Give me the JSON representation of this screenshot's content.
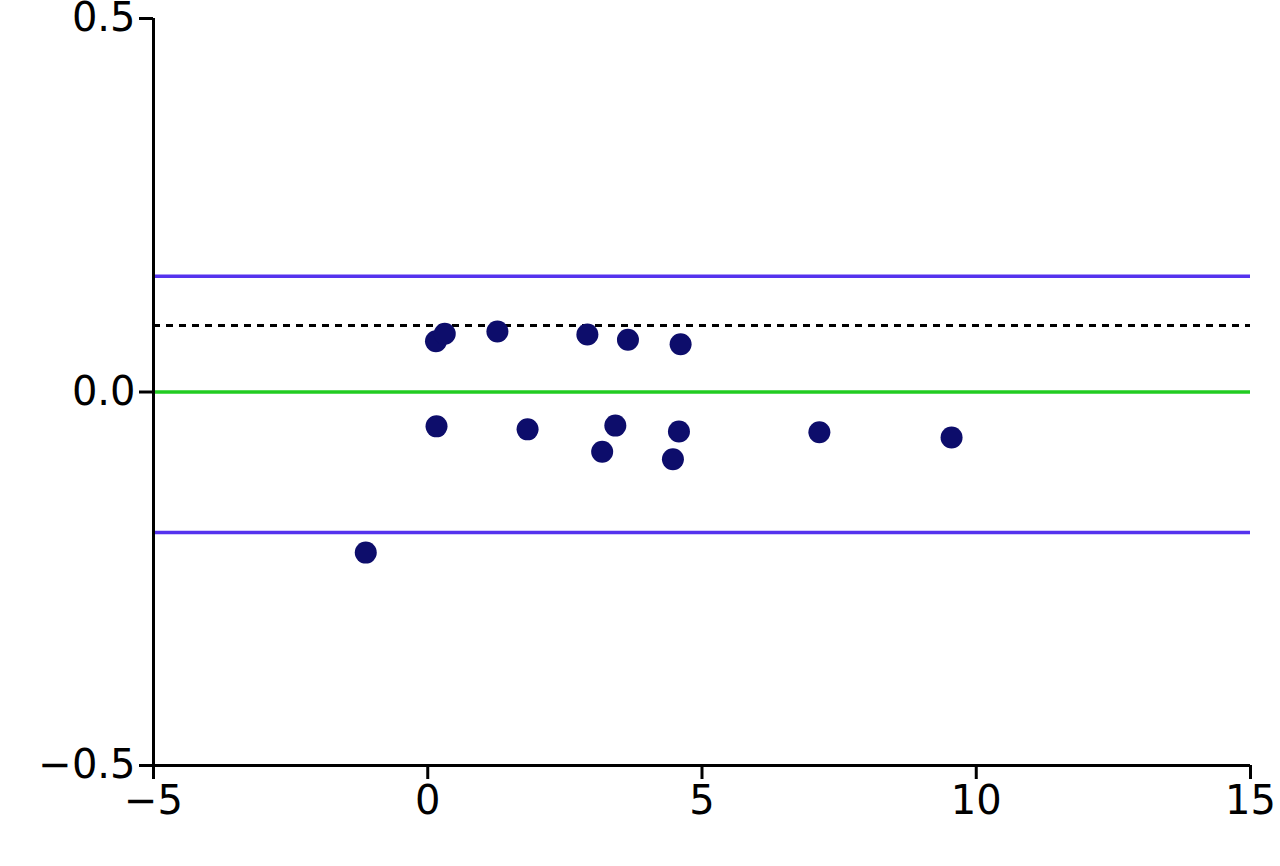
{
  "chart_data": {
    "type": "scatter",
    "x": [
      0.15,
      0.31,
      1.27,
      2.91,
      3.65,
      4.61,
      0.16,
      1.82,
      3.42,
      3.18,
      4.58,
      4.47,
      7.14,
      9.55,
      -1.13
    ],
    "values": [
      0.068,
      0.078,
      0.081,
      0.077,
      0.07,
      0.064,
      -0.046,
      -0.05,
      -0.045,
      -0.08,
      -0.053,
      -0.09,
      -0.054,
      -0.061,
      -0.215
    ],
    "color": "#0d0d6b",
    "marker": "circle",
    "hlines": [
      {
        "y": 0.155,
        "color": "#5533ee",
        "line_style": "solid"
      },
      {
        "y": 0.089,
        "color": "#000000",
        "line_style": "dashed"
      },
      {
        "y": 0,
        "color": "#22cc22",
        "line_style": "solid"
      },
      {
        "y": -0.188,
        "color": "#5533ee",
        "line_style": "solid"
      }
    ],
    "xlim": [
      -5,
      15
    ],
    "xticks": [
      -5,
      0,
      5,
      10,
      15
    ],
    "ylim": [
      -0.5,
      0.5
    ],
    "yticks": [
      -0.5,
      0,
      0.5
    ],
    "grid": false
  }
}
